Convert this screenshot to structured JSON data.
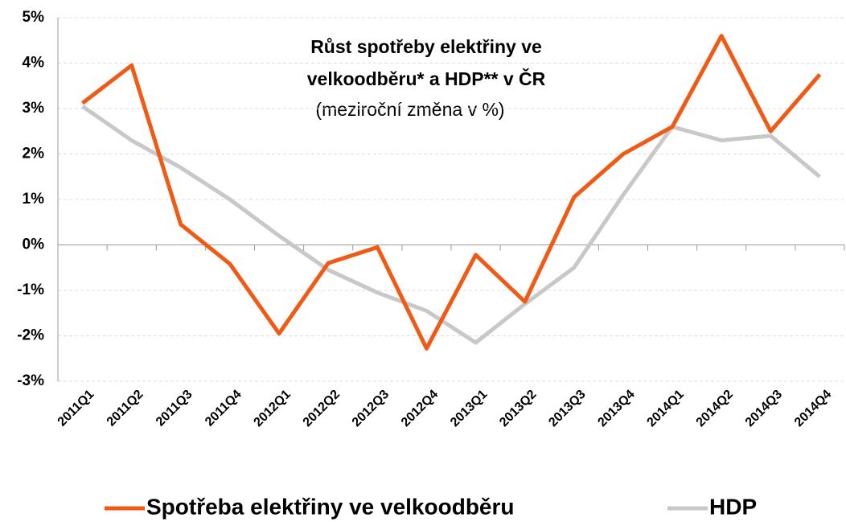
{
  "chart_data": {
    "type": "line",
    "title": [
      "Růst spotřeby elektřiny ve",
      "velkoodběru* a HDP** v ČR"
    ],
    "subtitle": "(meziroční změna v %)",
    "categories": [
      "2011Q1",
      "2011Q2",
      "2011Q3",
      "2011Q4",
      "2012Q1",
      "2012Q2",
      "2012Q3",
      "2012Q4",
      "2013Q1",
      "2013Q2",
      "2013Q3",
      "2013Q4",
      "2014Q1",
      "2014Q2",
      "2014Q3",
      "2014Q4"
    ],
    "series": [
      {
        "name": "Spotřeba elektřiny ve velkoodběru",
        "color": "#f05a14",
        "values": [
          3.12,
          3.95,
          0.45,
          -0.42,
          -1.95,
          -0.4,
          -0.05,
          -2.28,
          -0.22,
          -1.25,
          1.05,
          2.0,
          2.6,
          4.6,
          2.5,
          3.75
        ]
      },
      {
        "name": "HDP",
        "color": "#c8c8c8",
        "values": [
          3.05,
          2.3,
          1.7,
          1.0,
          0.2,
          -0.55,
          -1.05,
          -1.45,
          -2.15,
          -1.3,
          -0.5,
          1.1,
          2.6,
          2.3,
          2.4,
          1.5
        ]
      }
    ],
    "ylim": [
      -3,
      5
    ],
    "yticks": [
      {
        "value": -3,
        "label": "-3%"
      },
      {
        "value": -2,
        "label": "-2%"
      },
      {
        "value": -1,
        "label": "-1%"
      },
      {
        "value": 0,
        "label": "0%"
      },
      {
        "value": 1,
        "label": "1%"
      },
      {
        "value": 2,
        "label": "2%"
      },
      {
        "value": 3,
        "label": "3%"
      },
      {
        "value": 4,
        "label": "4%"
      },
      {
        "value": 5,
        "label": "5%"
      }
    ],
    "grid": true,
    "legend": "bottom"
  }
}
